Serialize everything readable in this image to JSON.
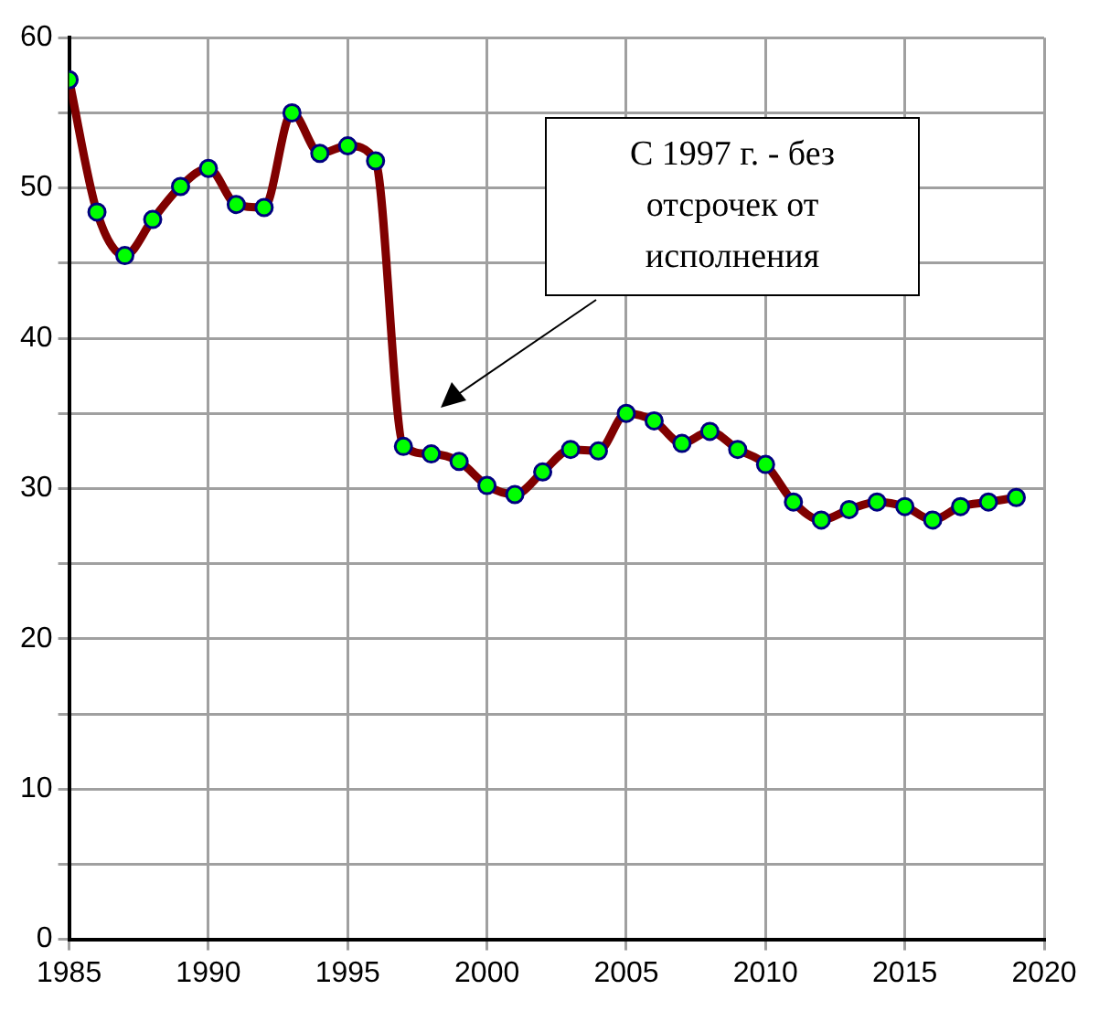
{
  "chart_data": {
    "type": "line",
    "x": [
      1985,
      1986,
      1987,
      1988,
      1989,
      1990,
      1991,
      1992,
      1993,
      1994,
      1995,
      1996,
      1997,
      1998,
      1999,
      2000,
      2001,
      2002,
      2003,
      2004,
      2005,
      2006,
      2007,
      2008,
      2009,
      2010,
      2011,
      2012,
      2013,
      2014,
      2015,
      2016,
      2017,
      2018,
      2019
    ],
    "series": [
      {
        "color": "#800000",
        "values": [
          57.2,
          48.4,
          45.5,
          47.9,
          50.1,
          51.3,
          48.9,
          48.7,
          55.0,
          52.3,
          52.8,
          51.8,
          32.8,
          32.3,
          31.8,
          30.2,
          29.6,
          31.1,
          32.6,
          32.5,
          35.0,
          34.5,
          33.0,
          33.8,
          32.6,
          31.6,
          29.1,
          27.9,
          28.6,
          29.1,
          28.8,
          27.9,
          28.8,
          29.1,
          29.4
        ]
      }
    ],
    "xlim": [
      1985,
      2020
    ],
    "xticks": [
      1985,
      1990,
      1995,
      2000,
      2005,
      2010,
      2015,
      2020
    ],
    "ylim": [
      0,
      60
    ],
    "yticks": [
      0,
      {
        "value": 5,
        "label": null
      },
      10,
      {
        "value": 15,
        "label": null
      },
      20,
      {
        "value": 25,
        "label": null
      },
      30,
      {
        "value": 35,
        "label": null
      },
      40,
      {
        "value": 45,
        "label": null
      },
      50,
      {
        "value": 55,
        "label": null
      },
      60
    ],
    "grid": true,
    "legend": false,
    "marker": "circle",
    "line_style": "solid",
    "annotations": [
      "С 1997 г. - без отсрочек от исполнения"
    ]
  }
}
